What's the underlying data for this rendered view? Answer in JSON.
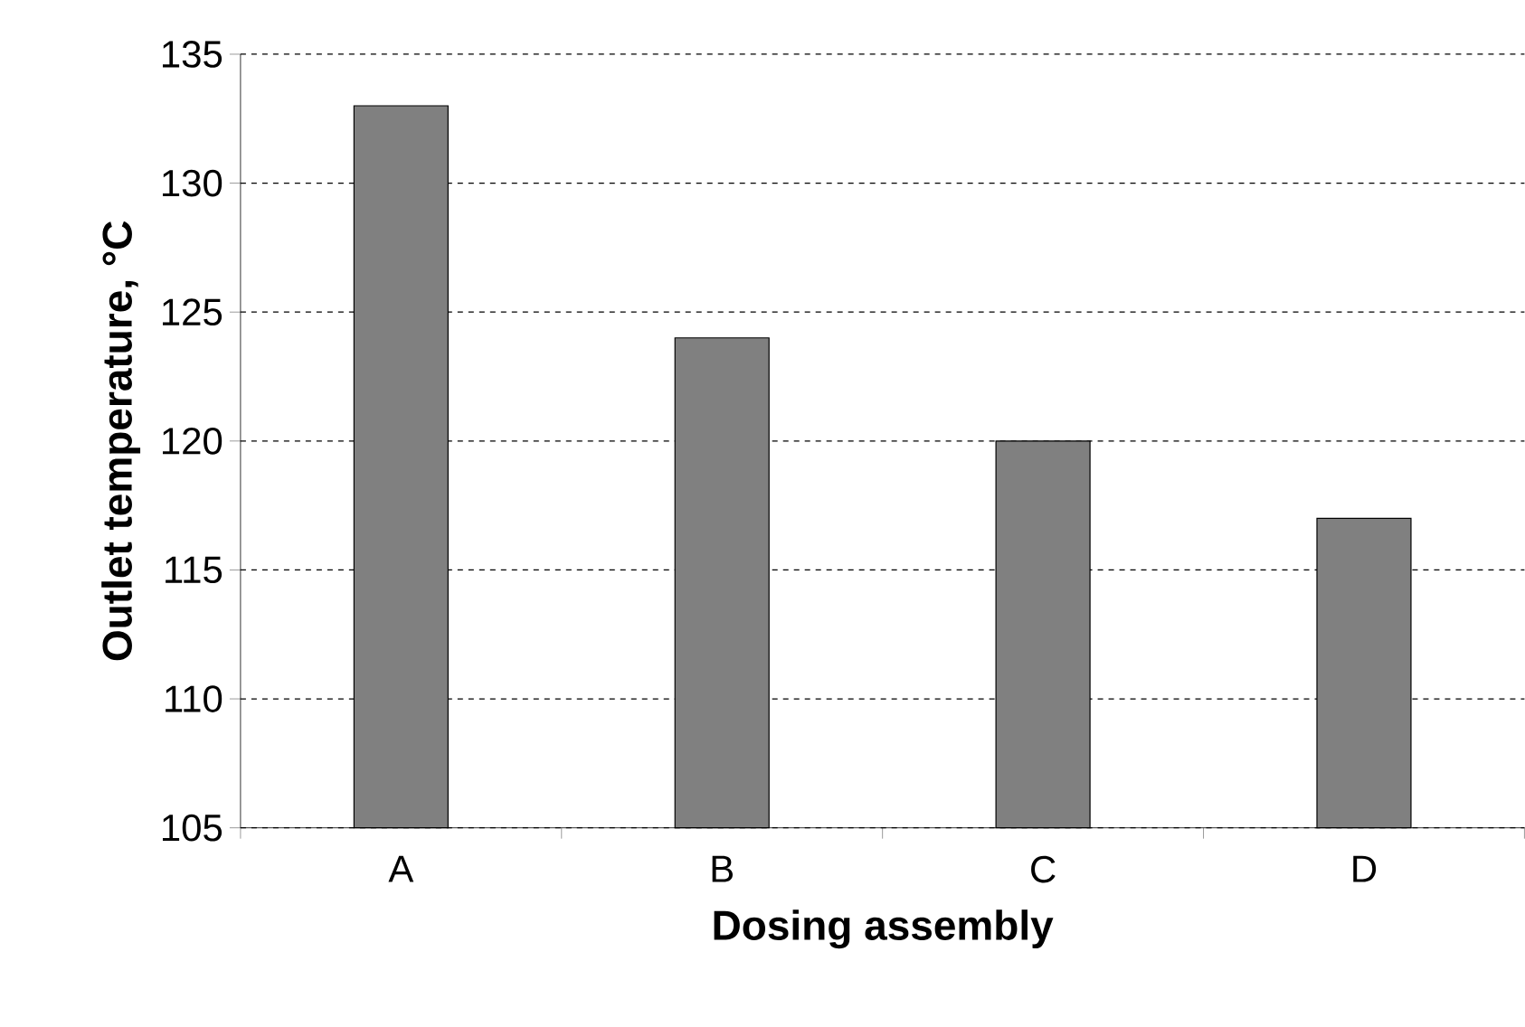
{
  "chart_data": {
    "type": "bar",
    "xlabel": "Dosing assembly",
    "ylabel": "Outlet temperature, °C",
    "categories": [
      "A",
      "B",
      "C",
      "D"
    ],
    "values": [
      133,
      124,
      120,
      117
    ],
    "color": "#808080",
    "ylim": [
      105,
      135
    ],
    "yticks": [
      105,
      110,
      115,
      120,
      125,
      130,
      135
    ],
    "grid": "y"
  }
}
